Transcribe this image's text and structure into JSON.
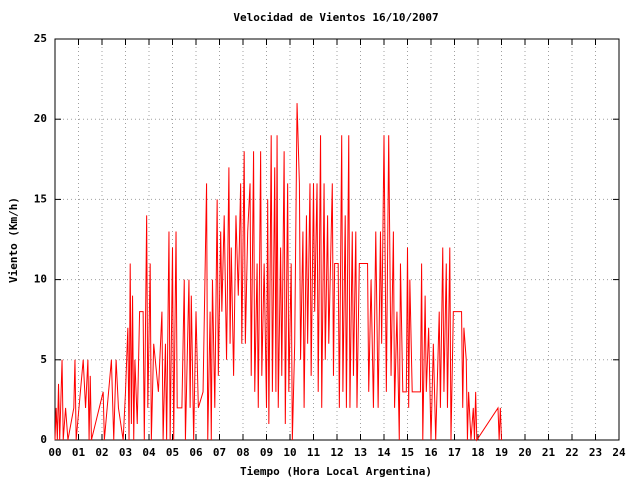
{
  "chart_data": {
    "type": "line",
    "title": "Velocidad de Vientos 16/10/2007",
    "xlabel": "Tiempo (Hora Local Argentina)",
    "ylabel": "Viento (Km/h)",
    "color": "#ff0000",
    "grid": true,
    "xlim": [
      0,
      24
    ],
    "ylim": [
      0,
      25
    ],
    "yticks": [
      0,
      5,
      10,
      15,
      20,
      25
    ],
    "xticks": [
      {
        "value": 0,
        "label": "00"
      },
      {
        "value": 1,
        "label": "01"
      },
      {
        "value": 2,
        "label": "02"
      },
      {
        "value": 3,
        "label": "03"
      },
      {
        "value": 4,
        "label": "04"
      },
      {
        "value": 5,
        "label": "05"
      },
      {
        "value": 6,
        "label": "06"
      },
      {
        "value": 7,
        "label": "07"
      },
      {
        "value": 8,
        "label": "08"
      },
      {
        "value": 9,
        "label": "09"
      },
      10,
      11,
      12,
      13,
      14,
      15,
      16,
      17,
      18,
      19,
      20,
      21,
      22,
      23,
      24
    ],
    "x": [
      0.0,
      0.05,
      0.1,
      0.15,
      0.2,
      0.3,
      0.35,
      0.45,
      0.55,
      0.8,
      0.85,
      0.9,
      1.2,
      1.3,
      1.4,
      1.45,
      1.5,
      1.55,
      2.05,
      2.1,
      2.4,
      2.5,
      2.6,
      2.7,
      2.9,
      3.0,
      3.1,
      3.15,
      3.2,
      3.25,
      3.3,
      3.35,
      3.4,
      3.5,
      3.6,
      3.75,
      3.8,
      3.9,
      3.95,
      4.05,
      4.1,
      4.2,
      4.4,
      4.55,
      4.6,
      4.7,
      4.75,
      4.85,
      4.9,
      5.0,
      5.05,
      5.15,
      5.2,
      5.4,
      5.5,
      5.55,
      5.7,
      5.75,
      5.8,
      5.9,
      6.0,
      6.1,
      6.3,
      6.45,
      6.5,
      6.6,
      6.65,
      6.7,
      6.8,
      6.9,
      6.95,
      7.05,
      7.1,
      7.2,
      7.3,
      7.4,
      7.45,
      7.5,
      7.6,
      7.7,
      7.8,
      7.9,
      7.95,
      8.05,
      8.1,
      8.2,
      8.3,
      8.35,
      8.45,
      8.5,
      8.6,
      8.65,
      8.75,
      8.8,
      8.9,
      9.0,
      9.05,
      9.1,
      9.2,
      9.25,
      9.35,
      9.4,
      9.45,
      9.5,
      9.6,
      9.65,
      9.75,
      9.8,
      9.9,
      9.95,
      10.05,
      10.1,
      10.2,
      10.3,
      10.4,
      10.45,
      10.55,
      10.6,
      10.7,
      10.75,
      10.85,
      10.9,
      11.0,
      11.05,
      11.15,
      11.2,
      11.3,
      11.35,
      11.45,
      11.5,
      11.6,
      11.65,
      11.8,
      11.85,
      11.9,
      12.05,
      12.1,
      12.2,
      12.25,
      12.35,
      12.4,
      12.5,
      12.55,
      12.65,
      12.7,
      12.8,
      12.85,
      12.95,
      13.3,
      13.35,
      13.45,
      13.55,
      13.65,
      13.75,
      13.85,
      13.9,
      14.0,
      14.1,
      14.2,
      14.3,
      14.4,
      14.45,
      14.55,
      14.65,
      14.7,
      14.8,
      14.95,
      15.0,
      15.05,
      15.1,
      15.2,
      15.55,
      15.6,
      15.65,
      15.75,
      15.8,
      15.9,
      16.0,
      16.1,
      16.2,
      16.35,
      16.4,
      16.5,
      16.55,
      16.65,
      16.7,
      16.8,
      16.85,
      16.95,
      17.3,
      17.35,
      17.4,
      17.5,
      17.55,
      17.6,
      17.7,
      17.8,
      17.85,
      17.9,
      17.95,
      18.85,
      18.9,
      18.95,
      19.0
    ],
    "values": [
      0,
      2,
      0,
      3.5,
      0,
      5,
      0,
      2,
      0,
      2,
      5,
      0,
      5,
      2,
      5,
      0,
      4,
      0,
      3,
      0,
      5,
      0,
      5,
      2,
      0,
      3,
      7,
      0,
      11,
      1,
      9,
      0,
      5,
      1,
      8,
      8,
      0,
      14,
      2,
      11,
      0,
      6,
      3,
      8,
      0,
      6,
      0,
      13,
      0,
      12,
      0,
      13,
      2,
      2,
      10,
      0,
      10,
      2,
      9,
      0,
      8,
      2,
      3,
      16,
      0,
      8,
      0,
      10,
      2,
      15,
      4,
      13,
      8,
      14,
      5,
      17,
      6,
      12,
      4,
      14,
      9,
      16,
      6,
      18,
      6,
      13,
      16,
      4,
      18,
      3,
      11,
      2,
      18,
      4,
      11,
      2,
      15,
      1,
      19,
      3,
      17,
      3,
      19,
      2,
      12,
      4,
      18,
      1,
      16,
      3,
      11,
      0,
      6,
      21,
      16,
      5,
      13,
      2,
      14,
      6,
      16,
      4,
      16,
      8,
      16,
      3,
      19,
      2,
      16,
      5,
      14,
      6,
      16,
      4,
      11,
      11,
      2,
      19,
      3,
      14,
      2,
      19,
      2,
      13,
      4,
      13,
      2,
      11,
      11,
      3,
      10,
      2,
      13,
      2,
      13,
      6,
      19,
      3,
      19,
      4,
      13,
      2,
      8,
      0,
      11,
      3,
      3,
      12,
      2,
      10,
      3,
      3,
      11,
      0,
      9,
      3,
      7,
      0,
      6,
      0,
      8,
      2,
      12,
      3,
      11,
      2,
      12,
      0,
      8,
      8,
      2,
      7,
      5,
      0,
      3,
      0,
      2,
      0,
      3,
      0,
      2,
      0,
      2,
      0
    ]
  }
}
